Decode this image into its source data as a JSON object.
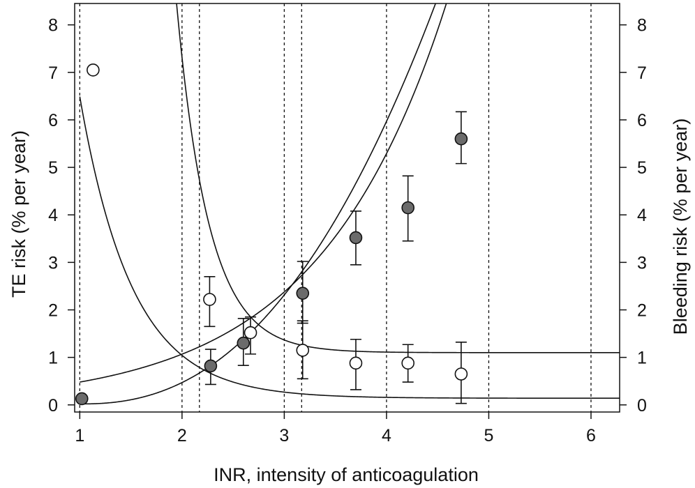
{
  "chart_data": {
    "type": "scatter",
    "xlabel": "INR, intensity of anticoagulation",
    "ylabel_left": "TE risk (% per year)",
    "ylabel_right": "Bleeding risk (% per year)",
    "xlim": [
      0.95,
      6.28
    ],
    "ylim": [
      -0.15,
      8.45
    ],
    "x_ticks": [
      1,
      2,
      3,
      4,
      5,
      6
    ],
    "y_ticks": [
      0,
      1,
      2,
      3,
      4,
      5,
      6,
      7,
      8
    ],
    "vertical_reference_lines": [
      1.0,
      2.0,
      2.17,
      3.0,
      3.17,
      4.0,
      5.0,
      6.0
    ],
    "series": [
      {
        "name": "TE risk (open circles)",
        "marker": "open-circle",
        "points": [
          {
            "x": 1.13,
            "y": 7.05
          },
          {
            "x": 2.27,
            "y": 2.22,
            "lo": 1.65,
            "hi": 2.7
          },
          {
            "x": 2.67,
            "y": 1.52,
            "lo": 1.07,
            "hi": 1.85
          },
          {
            "x": 3.18,
            "y": 1.15,
            "lo": 0.55,
            "hi": 1.77
          },
          {
            "x": 3.7,
            "y": 0.88,
            "lo": 0.32,
            "hi": 1.38
          },
          {
            "x": 4.21,
            "y": 0.88,
            "lo": 0.48,
            "hi": 1.27
          },
          {
            "x": 4.73,
            "y": 0.65,
            "lo": 0.03,
            "hi": 1.32
          }
        ]
      },
      {
        "name": "Bleeding risk (filled circles)",
        "marker": "filled-circle",
        "points": [
          {
            "x": 1.02,
            "y": 0.13
          },
          {
            "x": 2.28,
            "y": 0.82,
            "lo": 0.43,
            "hi": 1.17
          },
          {
            "x": 2.6,
            "y": 1.3,
            "lo": 0.83,
            "hi": 1.82
          },
          {
            "x": 3.18,
            "y": 2.35,
            "lo": 1.72,
            "hi": 3.02
          },
          {
            "x": 3.7,
            "y": 3.52,
            "lo": 2.95,
            "hi": 4.08
          },
          {
            "x": 4.21,
            "y": 4.15,
            "lo": 3.45,
            "hi": 4.82
          },
          {
            "x": 4.73,
            "y": 5.6,
            "lo": 5.08,
            "hi": 6.17
          }
        ]
      }
    ],
    "curves": [
      {
        "name": "TE fit upper",
        "kind": "exp-decay",
        "a": 1.1,
        "b": 145,
        "c": 3.15,
        "x0": 1.0,
        "x_from": 1.6,
        "x_to": 6.28
      },
      {
        "name": "TE fit lower",
        "kind": "exp-decay",
        "a": 0.14,
        "b": 6.35,
        "c": 1.95,
        "x0": 1.0,
        "x_from": 1.0,
        "x_to": 6.28
      },
      {
        "name": "Bleeding fit upper",
        "kind": "exp-growth",
        "a": 0.48,
        "b": 1.0,
        "k": 0.8,
        "x0": 1.0,
        "x_from": 1.0,
        "x_to": 5.25
      },
      {
        "name": "Bleeding fit lower",
        "kind": "power-growth",
        "a": 0.02,
        "b": 0.45,
        "p": 2.35,
        "x0": 1.0,
        "x_from": 1.0,
        "x_to": 5.7
      }
    ]
  }
}
